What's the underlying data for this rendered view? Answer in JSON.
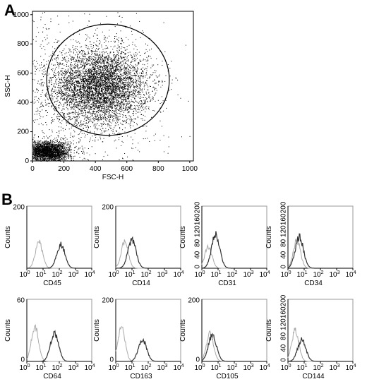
{
  "panel_labels": [
    "A",
    "B"
  ],
  "chart_data": [
    {
      "type": "scatter",
      "panel": "A",
      "xlabel": "FSC-H",
      "ylabel": "SSC-H",
      "xlim": [
        0,
        1023
      ],
      "ylim": [
        0,
        1023
      ],
      "xticks": [
        0,
        200,
        400,
        600,
        800,
        1000
      ],
      "yticks": [
        0,
        200,
        400,
        600,
        800,
        1000
      ],
      "gate": {
        "shape": "circle",
        "center": [
          480,
          555
        ],
        "radius_x": 390,
        "radius_y": 380
      },
      "populations": [
        {
          "center": [
            430,
            510
          ],
          "spread": [
            150,
            130
          ],
          "n": 5200
        },
        {
          "center": [
            95,
            65
          ],
          "spread": [
            70,
            35
          ],
          "n": 2600
        },
        {
          "center": [
            150,
            420
          ],
          "spread": [
            350,
            300
          ],
          "n": 1200
        }
      ]
    },
    {
      "type": "area",
      "panel": "B",
      "marker": "CD45",
      "ylabel": "Counts",
      "ylim": [
        0,
        200
      ],
      "yticks": [
        "200"
      ],
      "xscale": "log",
      "xticks_exp": [
        0,
        1,
        2,
        3,
        4
      ],
      "control_peak_log": 0.75,
      "control_height": 0.42,
      "marker_peak_log": 2.1,
      "marker_height": 0.38
    },
    {
      "type": "area",
      "panel": "B",
      "marker": "CD14",
      "ylabel": "Counts",
      "ylim": [
        0,
        200
      ],
      "yticks": [
        "200"
      ],
      "xscale": "log",
      "xticks_exp": [
        0,
        1,
        2,
        3,
        4
      ],
      "control_peak_log": 0.55,
      "control_height": 0.42,
      "marker_peak_log": 1.0,
      "marker_height": 0.45
    },
    {
      "type": "area",
      "panel": "B",
      "marker": "CD31",
      "ylabel": "Counts",
      "ylim": [
        0,
        200
      ],
      "yticks": [
        "200",
        "160",
        "120",
        "80",
        "40",
        "0"
      ],
      "xscale": "log",
      "xticks_exp": [
        0,
        1,
        2,
        3,
        4
      ],
      "control_peak_log": 0.4,
      "control_height": 0.35,
      "marker_peak_log": 0.85,
      "marker_height": 0.55
    },
    {
      "type": "area",
      "panel": "B",
      "marker": "CD34",
      "ylabel": "Counts",
      "ylim": [
        0,
        200
      ],
      "yticks": [
        "200",
        "160",
        "120",
        "80",
        "40",
        "0"
      ],
      "xscale": "log",
      "xticks_exp": [
        0,
        1,
        2,
        3,
        4
      ],
      "control_peak_log": 0.55,
      "control_height": 0.45,
      "marker_peak_log": 0.7,
      "marker_height": 0.5
    },
    {
      "type": "area",
      "panel": "B",
      "marker": "CD64",
      "ylabel": "Counts",
      "ylim": [
        0,
        60
      ],
      "yticks": [
        "60",
        "0"
      ],
      "xscale": "log",
      "xticks_exp": [
        0,
        1,
        2,
        3,
        4
      ],
      "control_peak_log": 0.5,
      "control_height": 0.55,
      "marker_peak_log": 1.7,
      "marker_height": 0.45
    },
    {
      "type": "area",
      "panel": "B",
      "marker": "CD163",
      "ylabel": "Counts",
      "ylim": [
        0,
        200
      ],
      "yticks": [
        "200",
        "0"
      ],
      "xscale": "log",
      "xticks_exp": [
        0,
        1,
        2,
        3,
        4
      ],
      "control_peak_log": 0.35,
      "control_height": 0.55,
      "marker_peak_log": 1.65,
      "marker_height": 0.35
    },
    {
      "type": "area",
      "panel": "B",
      "marker": "CD105",
      "ylabel": "Counts",
      "ylim": [
        0,
        200
      ],
      "yticks": [
        "200",
        "0"
      ],
      "xscale": "log",
      "xticks_exp": [
        0,
        1,
        2,
        3,
        4
      ],
      "control_peak_log": 0.5,
      "control_height": 0.45,
      "marker_peak_log": 0.65,
      "marker_height": 0.42
    },
    {
      "type": "area",
      "panel": "B",
      "marker": "CD144",
      "ylabel": "Counts",
      "ylim": [
        0,
        200
      ],
      "yticks": [
        "200",
        "160",
        "120",
        "80",
        "40",
        "0"
      ],
      "xscale": "log",
      "xticks_exp": [
        0,
        1,
        2,
        3,
        4
      ],
      "control_peak_log": 0.45,
      "control_height": 0.5,
      "marker_peak_log": 0.85,
      "marker_height": 0.35
    }
  ]
}
